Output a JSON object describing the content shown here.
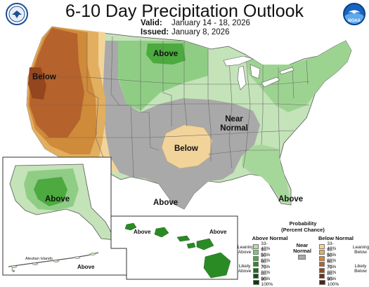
{
  "header": {
    "title": "6-10 Day Precipitation Outlook",
    "valid_label": "Valid:",
    "valid_value": "January 14 - 18, 2026",
    "issued_label": "Issued:",
    "issued_value": "January 8, 2026"
  },
  "logos": {
    "left": "dept-of-commerce-seal",
    "right": "noaa-logo",
    "right_text": "NOAA"
  },
  "map_labels": {
    "below_west": "Below",
    "above_north": "Above",
    "near_normal_1": "Near",
    "near_normal_2": "Normal",
    "below_south": "Below",
    "above_texas": "Above",
    "above_florida": "Above",
    "above_alaska": "Above",
    "above_hawaii_1": "Above",
    "above_hawaii_2": "Above",
    "above_aleutians": "Above",
    "aleutian_islands": "Aleutian Islands"
  },
  "legend": {
    "title_1": "Probability",
    "title_2": "(Percent Chance)",
    "above_header": "Above Normal",
    "below_header": "Below Normal",
    "near_header_1": "Near",
    "near_header_2": "Normal",
    "leaning_above_1": "Leaning",
    "leaning_above_2": "Above",
    "likely_above_1": "Likely",
    "likely_above_2": "Above",
    "leaning_below_1": "Leaning",
    "leaning_below_2": "Below",
    "likely_below_1": "Likely",
    "likely_below_2": "Below",
    "ranges": [
      "33-40%",
      "40-50%",
      "50-60%",
      "60-70%",
      "70-80%",
      "80-90%",
      "90-100%"
    ],
    "above_colors": [
      "#b3dea8",
      "#80c77c",
      "#4caa3e",
      "#2a8b25",
      "#1b6e18",
      "#0f5410",
      "#083d0a"
    ],
    "below_colors": [
      "#f2d49a",
      "#e2ae60",
      "#cf8a3a",
      "#b5622c",
      "#94461f",
      "#723317",
      "#52220f"
    ],
    "near_color": "#a9a9a9"
  }
}
